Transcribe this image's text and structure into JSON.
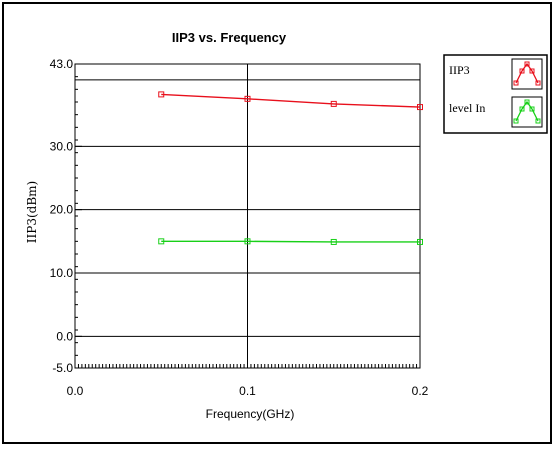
{
  "chart_data": {
    "type": "line",
    "title": "IIP3 vs. Frequency",
    "xlabel": "Frequency(GHz)",
    "ylabel": "IIP3(dBm)",
    "xlim": [
      0,
      0.2
    ],
    "ylim": [
      -5,
      43
    ],
    "x_ticks": [
      "0.0",
      "0.1",
      "0.2"
    ],
    "y_ticks": [
      "43.0",
      "30.0",
      "20.0",
      "10.0",
      "0.0",
      "-5.0"
    ],
    "grid": true,
    "legend_position": "top-right",
    "series": [
      {
        "name": "IIP3",
        "color": "#e8101c",
        "x": [
          0.05,
          0.1,
          0.15,
          0.2
        ],
        "y": [
          38.2,
          37.5,
          36.7,
          36.2
        ]
      },
      {
        "name": "level In",
        "color": "#18d018",
        "x": [
          0.05,
          0.1,
          0.15,
          0.2
        ],
        "y": [
          15.0,
          15.0,
          14.9,
          14.9
        ]
      }
    ]
  }
}
